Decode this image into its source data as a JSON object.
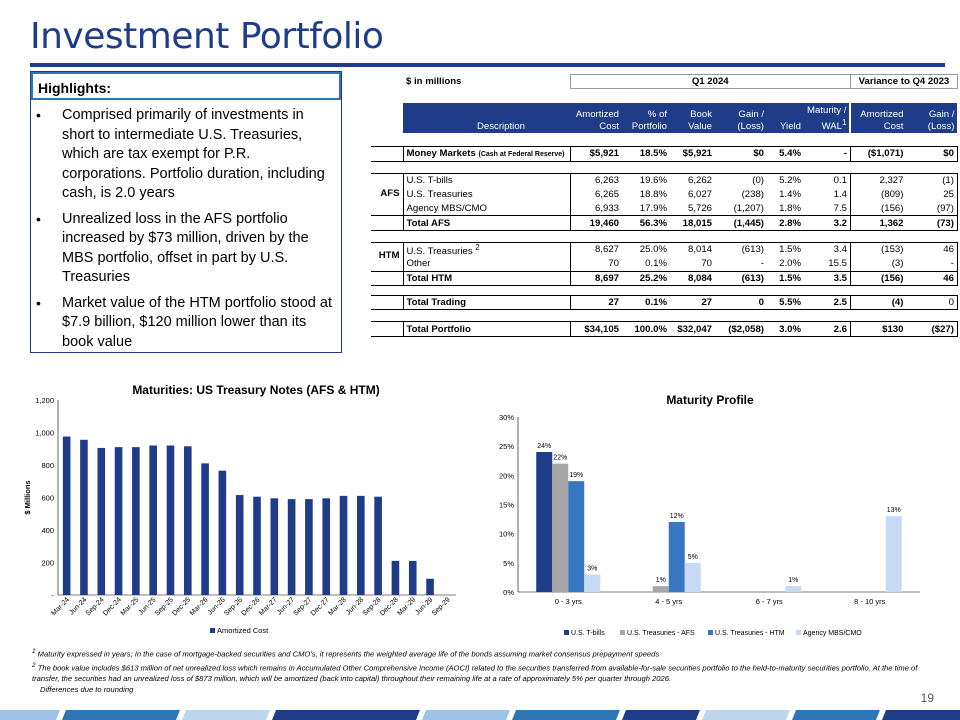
{
  "title": "Investment Portfolio",
  "highlights": {
    "heading": "Highlights:",
    "bullets": [
      "Comprised primarily of investments in short to intermediate U.S. Treasuries, which are tax exempt for P.R. corporations. Portfolio duration, including cash, is 2.0 years",
      "Unrealized loss in the AFS portfolio increased by $73 million, driven by the MBS portfolio, offset in part by U.S. Treasuries",
      "Market value of the HTM portfolio stood at $7.9 billion, $120 million lower than its book value"
    ]
  },
  "table": {
    "units_label": "$ in millions",
    "q1_label": "Q1 2024",
    "variance_label": "Variance to Q4 2023",
    "headers": {
      "description": "Description",
      "amortized_cost": [
        "Amortized",
        "Cost"
      ],
      "pct_portfolio": [
        "% of",
        "Portfolio"
      ],
      "book_value": [
        "Book",
        "Value"
      ],
      "gain_loss": [
        "Gain /",
        "(Loss)"
      ],
      "yield": "Yield",
      "maturity_wal": [
        "Maturity /",
        "WAL",
        "1"
      ],
      "var_amortized": [
        "Amortized",
        "Cost"
      ],
      "var_gain": [
        "Gain /",
        "(Loss)"
      ]
    },
    "groups": {
      "afs": "AFS",
      "htm": "HTM"
    },
    "money_markets": {
      "label": "Money Markets",
      "sub": "(Cash at Federal Reserve)",
      "cells": [
        "$5,921",
        "18.5%",
        "$5,921",
        "$0",
        "5.4%",
        "-",
        "($1,071)",
        "$0"
      ]
    },
    "afs_rows": [
      {
        "label": "U.S. T-bills",
        "cells": [
          "6,263",
          "19.6%",
          "6,262",
          "(0)",
          "5.2%",
          "0.1",
          "2,327",
          "(1)"
        ]
      },
      {
        "label": "U.S. Treasuries",
        "cells": [
          "6,265",
          "18.8%",
          "6,027",
          "(238)",
          "1.4%",
          "1.4",
          "(809)",
          "25"
        ]
      },
      {
        "label": "Agency MBS/CMO",
        "cells": [
          "6,933",
          "17.9%",
          "5,726",
          "(1,207)",
          "1.8%",
          "7.5",
          "(156)",
          "(97)"
        ]
      }
    ],
    "total_afs": {
      "label": "Total AFS",
      "cells": [
        "19,460",
        "56.3%",
        "18,015",
        "(1,445)",
        "2.8%",
        "3.2",
        "1,362",
        "(73)"
      ]
    },
    "htm_rows": [
      {
        "label": "U.S. Treasuries",
        "sup": "2",
        "cells": [
          "8,627",
          "25.0%",
          "8,014",
          "(613)",
          "1.5%",
          "3.4",
          "(153)",
          "46"
        ]
      },
      {
        "label": "Other",
        "cells": [
          "70",
          "0.1%",
          "70",
          "-",
          "2.0%",
          "15.5",
          "(3)",
          "-"
        ]
      }
    ],
    "total_htm": {
      "label": "Total HTM",
      "cells": [
        "8,697",
        "25.2%",
        "8,084",
        "(613)",
        "1.5%",
        "3.5",
        "(156)",
        "46"
      ]
    },
    "total_trading": {
      "label": "Total Trading",
      "cells": [
        "27",
        "0.1%",
        "27",
        "0",
        "5.5%",
        "2.5",
        "(4)",
        "0"
      ]
    },
    "total_portfolio": {
      "label": "Total Portfolio",
      "cells": [
        "$34,105",
        "100.0%",
        "$32,047",
        "($2,058)",
        "3.0%",
        "2.6",
        "$130",
        "($27)"
      ]
    }
  },
  "chart_data": [
    {
      "type": "bar",
      "title": "Maturities: US Treasury Notes (AFS & HTM)",
      "ylabel": "$ Millions",
      "xlabel": "",
      "ylim": [
        0,
        1200
      ],
      "yticks": [
        "-",
        "200",
        "400",
        "600",
        "800",
        "1,000",
        "1,200"
      ],
      "categories": [
        "Mar-24",
        "Jun-24",
        "Sep-24",
        "Dec-24",
        "Mar-25",
        "Jun-25",
        "Sep-25",
        "Dec-25",
        "Mar-26",
        "Jun-26",
        "Sep-26",
        "Dec-26",
        "Mar-27",
        "Jun-27",
        "Sep-27",
        "Dec-27",
        "Mar-28",
        "Jun-28",
        "Sep-28",
        "Dec-28",
        "Mar-29",
        "Jun-29",
        "Sep-29"
      ],
      "series": [
        {
          "name": "Amortized Cost",
          "color": "#1f3c88",
          "values": [
            975,
            955,
            905,
            910,
            910,
            920,
            920,
            915,
            810,
            765,
            615,
            605,
            595,
            590,
            590,
            595,
            610,
            610,
            605,
            210,
            210,
            100,
            0
          ]
        }
      ]
    },
    {
      "type": "bar",
      "title": "Maturity Profile",
      "ylim": [
        0,
        30
      ],
      "yticks": [
        "0%",
        "5%",
        "10%",
        "15%",
        "20%",
        "25%",
        "30%"
      ],
      "categories": [
        "0 - 3 yrs",
        "4 - 5 yrs",
        "6 - 7 yrs",
        "8 - 10 yrs"
      ],
      "series": [
        {
          "name": "U.S. T-bills",
          "color": "#1f3c88",
          "values": [
            24,
            0,
            0,
            0
          ],
          "labels": [
            "24%",
            "",
            "",
            ""
          ]
        },
        {
          "name": "U.S. Treasuries - AFS",
          "color": "#a6a6a6",
          "values": [
            22,
            1,
            0,
            0
          ],
          "labels": [
            "22%",
            "1%",
            "",
            ""
          ]
        },
        {
          "name": "U.S. Treasuries - HTM",
          "color": "#3a77c2",
          "values": [
            19,
            12,
            0,
            0
          ],
          "labels": [
            "19%",
            "12%",
            "",
            ""
          ]
        },
        {
          "name": "Agency MBS/CMO",
          "color": "#c6dbf3",
          "values": [
            3,
            5,
            1,
            13
          ],
          "labels": [
            "3%",
            "5%",
            "1%",
            "13%"
          ]
        }
      ]
    }
  ],
  "footnotes": {
    "note1_num": "1",
    "note1": "Maturity expressed in years; In the case of mortgage-backed securities and CMO's, it represents the weighted average life of the bonds assuming market consensus prepayment speeds",
    "note2_num": "2",
    "note2": "The book value includes $613 million of net unrealized loss which remains in Accumulated Other Comprehensive Income (AOCI) related to the securities transferred from available-for-sale securities portfolio to the held-to-maturity securities portfolio. At the time of transfer, the securities had an unrealized loss of $873 million, which will be amortized (back into capital) throughout their remaining life at a rate of approximately 5% per quarter through 2026.",
    "note3": "Differences due to rounding"
  },
  "page_number": "19"
}
